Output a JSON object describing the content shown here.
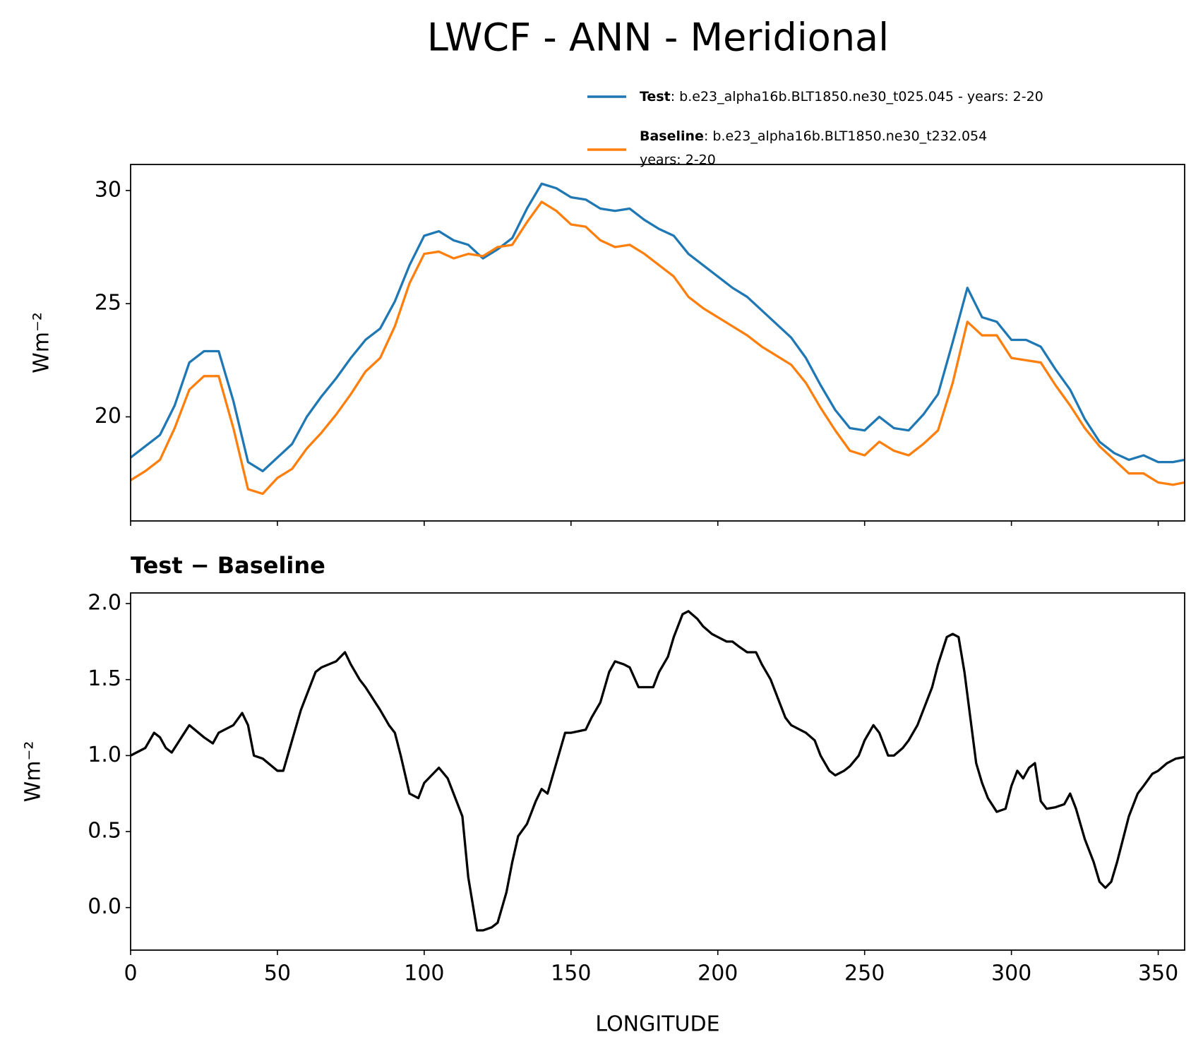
{
  "title": "LWCF - ANN - Meridional",
  "chart_data": [
    {
      "type": "line",
      "x": [
        0,
        5,
        10,
        15,
        20,
        25,
        30,
        35,
        40,
        45,
        50,
        55,
        60,
        65,
        70,
        75,
        80,
        85,
        90,
        95,
        100,
        105,
        110,
        115,
        120,
        125,
        130,
        135,
        140,
        145,
        150,
        155,
        160,
        165,
        170,
        175,
        180,
        185,
        190,
        195,
        200,
        205,
        210,
        215,
        220,
        225,
        230,
        235,
        240,
        245,
        250,
        255,
        260,
        265,
        270,
        275,
        280,
        285,
        290,
        295,
        300,
        305,
        310,
        315,
        320,
        325,
        330,
        335,
        340,
        345,
        350,
        355,
        359
      ],
      "xlim": [
        0,
        359
      ],
      "xticks": [
        0,
        50,
        100,
        150,
        200,
        250,
        300,
        350
      ],
      "ylim": [
        15.4,
        31.15
      ],
      "yticks": [
        20,
        25,
        30
      ],
      "ylabel": "Wm⁻²",
      "series": [
        {
          "name": "Test",
          "description": [
            ": b.e23_alpha16b.BLT1850.ne30_t025.045 - years: 2-20"
          ],
          "color": "#1f77b4",
          "values": [
            18.2,
            18.7,
            19.2,
            20.5,
            22.4,
            22.9,
            22.9,
            20.7,
            18.0,
            17.6,
            18.2,
            18.8,
            20.0,
            20.9,
            21.7,
            22.6,
            23.4,
            23.9,
            25.1,
            26.7,
            28.0,
            28.2,
            27.8,
            27.6,
            27.0,
            27.4,
            27.9,
            29.2,
            30.3,
            30.1,
            29.7,
            29.6,
            29.2,
            29.1,
            29.2,
            28.7,
            28.3,
            28.0,
            27.2,
            26.7,
            26.2,
            25.7,
            25.3,
            24.7,
            24.1,
            23.5,
            22.6,
            21.4,
            20.3,
            19.5,
            19.4,
            20.0,
            19.5,
            19.4,
            20.1,
            21.0,
            23.3,
            25.7,
            24.4,
            24.2,
            23.4,
            23.4,
            23.1,
            22.1,
            21.2,
            19.9,
            18.9,
            18.4,
            18.1,
            18.3,
            18.0,
            18.0,
            18.1
          ]
        },
        {
          "name": "Baseline",
          "description": [
            ": b.e23_alpha16b.BLT1850.ne30_t232.054",
            "years: 2-20"
          ],
          "color": "#ff7f0e",
          "values": [
            17.2,
            17.6,
            18.1,
            19.5,
            21.2,
            21.8,
            21.8,
            19.5,
            16.8,
            16.6,
            17.3,
            17.7,
            18.6,
            19.3,
            20.1,
            21.0,
            22.0,
            22.6,
            24.0,
            25.9,
            27.2,
            27.3,
            27.0,
            27.2,
            27.1,
            27.5,
            27.6,
            28.6,
            29.5,
            29.1,
            28.5,
            28.4,
            27.8,
            27.5,
            27.6,
            27.2,
            26.7,
            26.2,
            25.3,
            24.8,
            24.4,
            24.0,
            23.6,
            23.1,
            22.7,
            22.3,
            21.5,
            20.4,
            19.4,
            18.5,
            18.3,
            18.9,
            18.5,
            18.3,
            18.8,
            19.4,
            21.5,
            24.2,
            23.6,
            23.6,
            22.6,
            22.5,
            22.4,
            21.4,
            20.5,
            19.5,
            18.7,
            18.1,
            17.5,
            17.5,
            17.1,
            17.0,
            17.1
          ]
        }
      ]
    },
    {
      "type": "line",
      "title": "Test − Baseline",
      "x": [
        0,
        5,
        8,
        10,
        12,
        14,
        20,
        25,
        28,
        30,
        35,
        38,
        40,
        42,
        45,
        50,
        52,
        55,
        58,
        60,
        63,
        65,
        70,
        73,
        75,
        78,
        80,
        85,
        88,
        90,
        92,
        95,
        98,
        100,
        103,
        105,
        108,
        110,
        113,
        115,
        118,
        120,
        123,
        125,
        128,
        130,
        132,
        135,
        138,
        140,
        142,
        145,
        148,
        150,
        155,
        157,
        160,
        163,
        165,
        168,
        170,
        173,
        175,
        178,
        180,
        183,
        185,
        188,
        190,
        193,
        195,
        198,
        200,
        203,
        205,
        207,
        210,
        213,
        215,
        218,
        220,
        223,
        225,
        228,
        230,
        233,
        235,
        238,
        240,
        243,
        245,
        248,
        250,
        253,
        255,
        258,
        260,
        263,
        265,
        268,
        270,
        273,
        275,
        278,
        280,
        282,
        284,
        286,
        288,
        290,
        292,
        295,
        298,
        300,
        302,
        304,
        306,
        308,
        310,
        312,
        315,
        318,
        320,
        322,
        325,
        328,
        330,
        332,
        334,
        336,
        338,
        340,
        343,
        345,
        348,
        350,
        353,
        356,
        359
      ],
      "xlim": [
        0,
        359
      ],
      "xticks": [
        0,
        50,
        100,
        150,
        200,
        250,
        300,
        350
      ],
      "xlabel": "LONGITUDE",
      "ylim": [
        -0.28,
        2.07
      ],
      "yticks": [
        {
          "value": 0,
          "label": "0.0"
        },
        0.5,
        {
          "value": 1,
          "label": "1.0"
        },
        1.5,
        {
          "value": 2,
          "label": "2.0"
        }
      ],
      "ylabel": "Wm⁻²",
      "series": [
        {
          "color": "#000000",
          "values": [
            1.0,
            1.05,
            1.15,
            1.12,
            1.05,
            1.02,
            1.2,
            1.12,
            1.08,
            1.15,
            1.2,
            1.28,
            1.2,
            1.0,
            0.98,
            0.9,
            0.9,
            1.1,
            1.3,
            1.4,
            1.55,
            1.58,
            1.62,
            1.68,
            1.6,
            1.5,
            1.45,
            1.3,
            1.2,
            1.15,
            1.0,
            0.75,
            0.72,
            0.82,
            0.88,
            0.92,
            0.85,
            0.75,
            0.6,
            0.2,
            -0.15,
            -0.15,
            -0.13,
            -0.1,
            0.1,
            0.3,
            0.47,
            0.55,
            0.7,
            0.78,
            0.75,
            0.95,
            1.15,
            1.15,
            1.17,
            1.25,
            1.35,
            1.55,
            1.62,
            1.6,
            1.58,
            1.45,
            1.45,
            1.45,
            1.55,
            1.65,
            1.78,
            1.93,
            1.95,
            1.9,
            1.85,
            1.8,
            1.78,
            1.75,
            1.75,
            1.72,
            1.68,
            1.68,
            1.6,
            1.5,
            1.4,
            1.25,
            1.2,
            1.17,
            1.15,
            1.1,
            1.0,
            0.9,
            0.87,
            0.9,
            0.93,
            1.0,
            1.1,
            1.2,
            1.15,
            1.0,
            1.0,
            1.05,
            1.1,
            1.2,
            1.3,
            1.45,
            1.6,
            1.78,
            1.8,
            1.78,
            1.55,
            1.25,
            0.95,
            0.82,
            0.72,
            0.63,
            0.65,
            0.8,
            0.9,
            0.85,
            0.92,
            0.95,
            0.7,
            0.65,
            0.66,
            0.68,
            0.75,
            0.65,
            0.45,
            0.3,
            0.17,
            0.13,
            0.17,
            0.3,
            0.45,
            0.6,
            0.75,
            0.8,
            0.88,
            0.9,
            0.95,
            0.98,
            0.99
          ]
        }
      ]
    }
  ]
}
